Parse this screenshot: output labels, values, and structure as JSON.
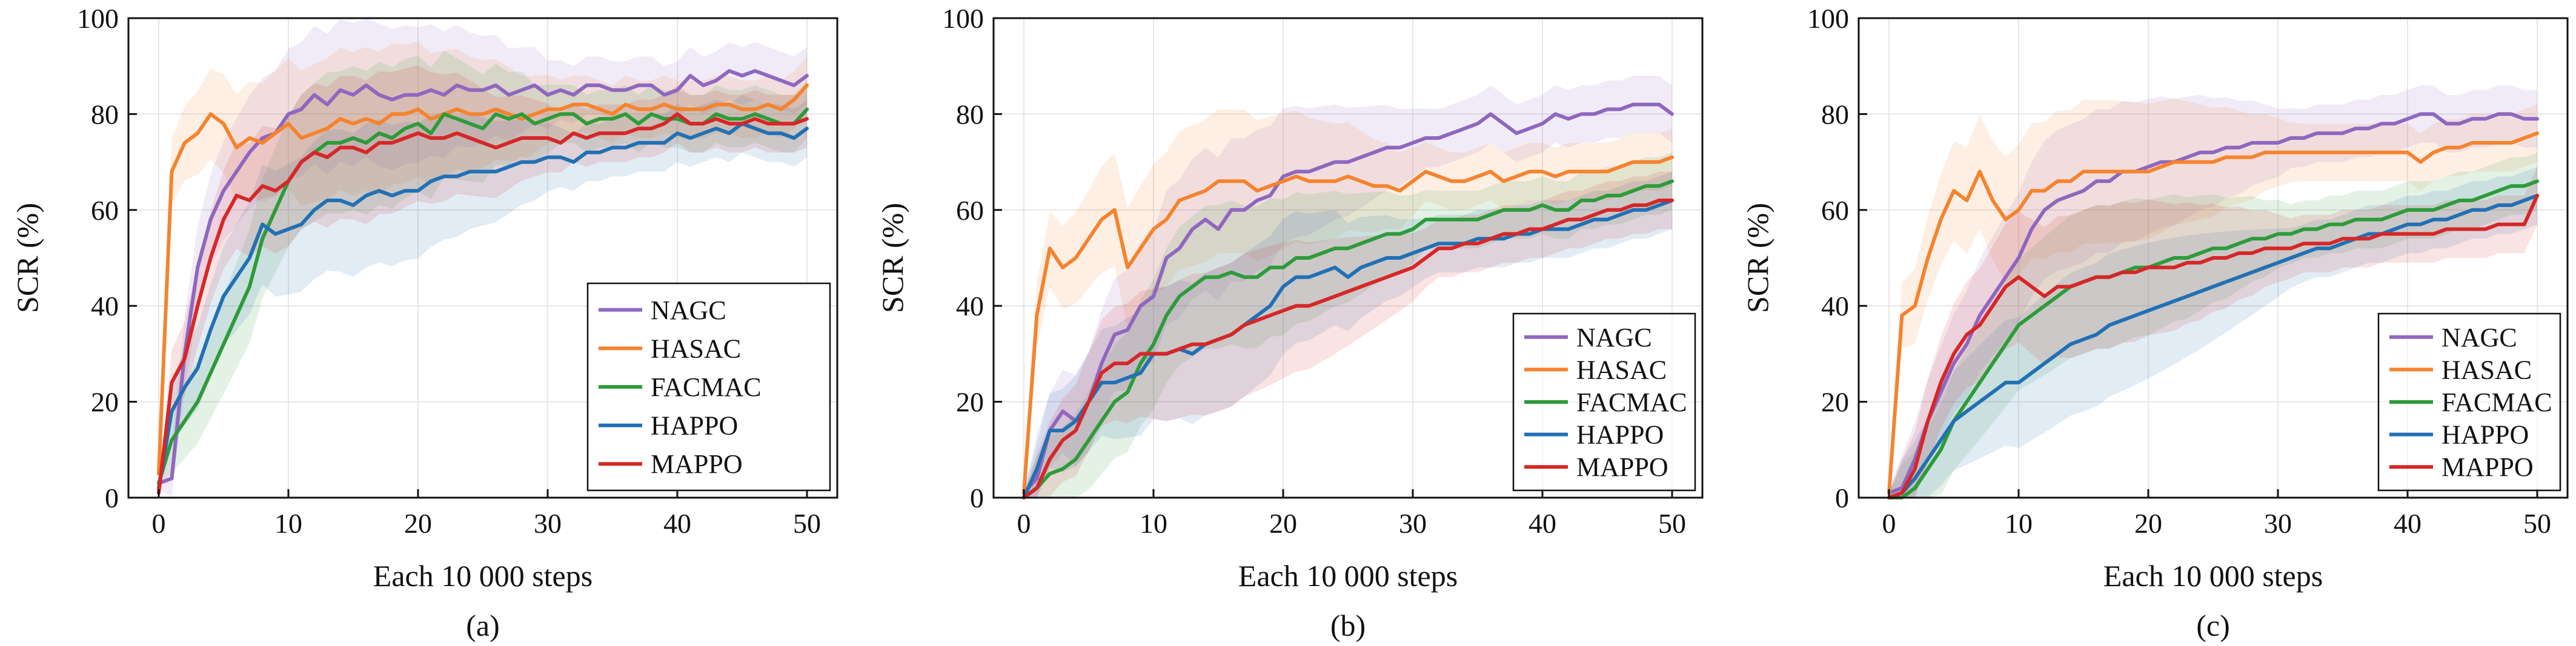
{
  "figure": {
    "panels": [
      {
        "caption": "(a)",
        "xlabel": "Each 10 000 steps",
        "ylabel": "SCR (%)"
      },
      {
        "caption": "(b)",
        "xlabel": "Each 10 000 steps",
        "ylabel": "SCR (%)"
      },
      {
        "caption": "(c)",
        "xlabel": "Each 10 000 steps",
        "ylabel": "SCR (%)"
      }
    ]
  },
  "chart_data": [
    {
      "type": "line",
      "caption": "(a)",
      "xlabel": "Each 10 000 steps",
      "ylabel": "SCR (%)",
      "xlim": [
        0,
        50
      ],
      "ylim": [
        0,
        100
      ],
      "xticks": [
        0,
        10,
        20,
        30,
        40,
        50
      ],
      "yticks": [
        0,
        20,
        40,
        60,
        80,
        100
      ],
      "grid": true,
      "legend_position": "bottom-right",
      "shaded_bands": true,
      "x": [
        0,
        1,
        2,
        3,
        4,
        5,
        6,
        7,
        8,
        9,
        10,
        11,
        12,
        13,
        14,
        15,
        16,
        17,
        18,
        19,
        20,
        21,
        22,
        23,
        24,
        25,
        26,
        27,
        28,
        29,
        30,
        31,
        32,
        33,
        34,
        35,
        36,
        37,
        38,
        39,
        40,
        41,
        42,
        43,
        44,
        45,
        46,
        47,
        48,
        49,
        50
      ],
      "series": [
        {
          "name": "NAGC",
          "color": "#8f67bf",
          "values": [
            3,
            4,
            30,
            48,
            58,
            64,
            68,
            72,
            75,
            76,
            80,
            81,
            84,
            82,
            85,
            84,
            86,
            84,
            83,
            84,
            84,
            85,
            84,
            86,
            85,
            85,
            86,
            84,
            85,
            86,
            84,
            85,
            84,
            86,
            86,
            85,
            85,
            86,
            86,
            84,
            85,
            88,
            86,
            87,
            89,
            88,
            89,
            88,
            87,
            86,
            88
          ]
        },
        {
          "name": "HASAC",
          "color": "#f5832e",
          "values": [
            5,
            68,
            74,
            76,
            80,
            78,
            73,
            75,
            74,
            76,
            78,
            75,
            76,
            77,
            79,
            78,
            79,
            78,
            80,
            80,
            81,
            79,
            80,
            81,
            80,
            80,
            81,
            80,
            79,
            80,
            81,
            81,
            82,
            82,
            81,
            80,
            82,
            81,
            81,
            82,
            81,
            81,
            81,
            82,
            82,
            81,
            81,
            82,
            81,
            83,
            86
          ]
        },
        {
          "name": "FACMAC",
          "color": "#2e9b3a",
          "values": [
            3,
            12,
            16,
            20,
            26,
            32,
            38,
            44,
            54,
            60,
            66,
            70,
            72,
            74,
            74,
            75,
            74,
            76,
            75,
            77,
            78,
            76,
            80,
            79,
            78,
            77,
            80,
            79,
            80,
            78,
            79,
            80,
            80,
            78,
            79,
            79,
            80,
            78,
            80,
            79,
            79,
            78,
            78,
            80,
            79,
            79,
            80,
            79,
            78,
            78,
            81
          ]
        },
        {
          "name": "HAPPO",
          "color": "#2270b5",
          "values": [
            2,
            18,
            23,
            27,
            35,
            42,
            46,
            50,
            57,
            55,
            56,
            57,
            60,
            62,
            62,
            61,
            63,
            64,
            63,
            64,
            64,
            66,
            67,
            67,
            68,
            68,
            68,
            69,
            70,
            70,
            71,
            71,
            70,
            72,
            72,
            73,
            73,
            74,
            74,
            74,
            76,
            75,
            76,
            77,
            76,
            78,
            77,
            76,
            76,
            75,
            77
          ]
        },
        {
          "name": "MAPPO",
          "color": "#d62728",
          "values": [
            1,
            24,
            29,
            40,
            50,
            58,
            63,
            62,
            65,
            64,
            66,
            70,
            72,
            71,
            73,
            73,
            72,
            74,
            74,
            75,
            76,
            75,
            75,
            76,
            75,
            74,
            73,
            74,
            75,
            75,
            75,
            74,
            76,
            75,
            76,
            76,
            76,
            77,
            77,
            78,
            80,
            78,
            78,
            79,
            78,
            78,
            79,
            78,
            78,
            78,
            79
          ]
        }
      ]
    },
    {
      "type": "line",
      "caption": "(b)",
      "xlabel": "Each 10 000 steps",
      "ylabel": "SCR (%)",
      "xlim": [
        0,
        50
      ],
      "ylim": [
        0,
        100
      ],
      "xticks": [
        0,
        10,
        20,
        30,
        40,
        50
      ],
      "yticks": [
        0,
        20,
        40,
        60,
        80,
        100
      ],
      "grid": true,
      "legend_position": "bottom-right",
      "shaded_bands": true,
      "x": [
        0,
        1,
        2,
        3,
        4,
        5,
        6,
        7,
        8,
        9,
        10,
        11,
        12,
        13,
        14,
        15,
        16,
        17,
        18,
        19,
        20,
        21,
        22,
        23,
        24,
        25,
        26,
        27,
        28,
        29,
        30,
        31,
        32,
        33,
        34,
        35,
        36,
        37,
        38,
        39,
        40,
        41,
        42,
        43,
        44,
        45,
        46,
        47,
        48,
        49,
        50
      ],
      "series": [
        {
          "name": "NAGC",
          "color": "#8f67bf",
          "values": [
            1,
            4,
            14,
            18,
            16,
            20,
            28,
            34,
            35,
            40,
            42,
            50,
            52,
            56,
            58,
            56,
            60,
            60,
            62,
            63,
            67,
            68,
            68,
            69,
            70,
            70,
            71,
            72,
            73,
            73,
            74,
            75,
            75,
            76,
            77,
            78,
            80,
            78,
            76,
            77,
            78,
            80,
            79,
            80,
            80,
            81,
            81,
            82,
            82,
            82,
            80
          ]
        },
        {
          "name": "HASAC",
          "color": "#f5832e",
          "values": [
            1,
            38,
            52,
            48,
            50,
            54,
            58,
            60,
            48,
            52,
            56,
            58,
            62,
            63,
            64,
            66,
            66,
            66,
            64,
            65,
            66,
            67,
            66,
            66,
            66,
            67,
            66,
            65,
            65,
            64,
            66,
            68,
            67,
            66,
            66,
            67,
            68,
            66,
            67,
            68,
            68,
            67,
            68,
            68,
            68,
            68,
            69,
            70,
            70,
            70,
            71
          ]
        },
        {
          "name": "FACMAC",
          "color": "#2e9b3a",
          "values": [
            0,
            2,
            5,
            6,
            8,
            12,
            16,
            20,
            22,
            28,
            32,
            38,
            42,
            44,
            46,
            46,
            47,
            46,
            46,
            48,
            48,
            50,
            50,
            51,
            52,
            52,
            53,
            54,
            55,
            55,
            56,
            58,
            58,
            58,
            58,
            58,
            59,
            60,
            60,
            60,
            61,
            60,
            60,
            62,
            62,
            63,
            63,
            64,
            65,
            65,
            66
          ]
        },
        {
          "name": "HAPPO",
          "color": "#2270b5",
          "values": [
            0,
            6,
            14,
            14,
            16,
            20,
            24,
            24,
            25,
            26,
            30,
            30,
            31,
            30,
            32,
            33,
            34,
            36,
            38,
            40,
            44,
            46,
            46,
            47,
            48,
            46,
            48,
            49,
            50,
            50,
            51,
            52,
            53,
            53,
            53,
            54,
            54,
            54,
            55,
            55,
            56,
            56,
            56,
            57,
            58,
            58,
            59,
            60,
            60,
            61,
            62
          ]
        },
        {
          "name": "MAPPO",
          "color": "#d62728",
          "values": [
            0,
            2,
            8,
            12,
            14,
            20,
            26,
            28,
            28,
            30,
            30,
            30,
            31,
            32,
            32,
            33,
            34,
            36,
            37,
            38,
            39,
            40,
            40,
            41,
            42,
            43,
            44,
            45,
            46,
            47,
            48,
            50,
            52,
            52,
            53,
            53,
            54,
            55,
            55,
            56,
            56,
            57,
            58,
            58,
            59,
            60,
            60,
            61,
            61,
            62,
            62
          ]
        }
      ]
    },
    {
      "type": "line",
      "caption": "(c)",
      "xlabel": "Each 10 000 steps",
      "ylabel": "SCR (%)",
      "xlim": [
        0,
        50
      ],
      "ylim": [
        0,
        100
      ],
      "xticks": [
        0,
        10,
        20,
        30,
        40,
        50
      ],
      "yticks": [
        0,
        20,
        40,
        60,
        80,
        100
      ],
      "grid": true,
      "legend_position": "bottom-right",
      "shaded_bands": true,
      "x": [
        0,
        1,
        2,
        3,
        4,
        5,
        6,
        7,
        8,
        9,
        10,
        11,
        12,
        13,
        14,
        15,
        16,
        17,
        18,
        19,
        20,
        21,
        22,
        23,
        24,
        25,
        26,
        27,
        28,
        29,
        30,
        31,
        32,
        33,
        34,
        35,
        36,
        37,
        38,
        39,
        40,
        41,
        42,
        43,
        44,
        45,
        46,
        47,
        48,
        49,
        50
      ],
      "series": [
        {
          "name": "NAGC",
          "color": "#8f67bf",
          "values": [
            1,
            2,
            8,
            16,
            22,
            28,
            32,
            38,
            42,
            46,
            50,
            56,
            60,
            62,
            63,
            64,
            66,
            66,
            68,
            68,
            69,
            70,
            70,
            71,
            72,
            72,
            73,
            73,
            74,
            74,
            74,
            75,
            75,
            76,
            76,
            76,
            77,
            77,
            78,
            78,
            79,
            80,
            80,
            78,
            78,
            79,
            79,
            80,
            80,
            79,
            79
          ]
        },
        {
          "name": "HASAC",
          "color": "#f5832e",
          "values": [
            1,
            38,
            40,
            50,
            58,
            64,
            62,
            68,
            62,
            58,
            60,
            64,
            64,
            66,
            66,
            68,
            68,
            68,
            68,
            68,
            68,
            69,
            70,
            70,
            70,
            70,
            71,
            71,
            71,
            72,
            72,
            72,
            72,
            72,
            72,
            72,
            72,
            72,
            72,
            72,
            72,
            70,
            72,
            73,
            73,
            74,
            74,
            74,
            74,
            75,
            76
          ]
        },
        {
          "name": "FACMAC",
          "color": "#2e9b3a",
          "values": [
            0,
            0,
            2,
            6,
            10,
            16,
            20,
            24,
            28,
            32,
            36,
            38,
            40,
            42,
            44,
            45,
            46,
            46,
            47,
            48,
            48,
            49,
            50,
            50,
            51,
            52,
            52,
            53,
            54,
            54,
            55,
            55,
            56,
            56,
            57,
            57,
            58,
            58,
            58,
            59,
            60,
            60,
            60,
            61,
            62,
            62,
            63,
            64,
            65,
            65,
            66
          ]
        },
        {
          "name": "HAPPO",
          "color": "#2270b5",
          "values": [
            0,
            1,
            4,
            8,
            12,
            16,
            18,
            20,
            22,
            24,
            24,
            26,
            28,
            30,
            32,
            33,
            34,
            36,
            37,
            38,
            39,
            40,
            41,
            42,
            43,
            44,
            45,
            46,
            47,
            48,
            49,
            50,
            51,
            52,
            52,
            53,
            54,
            55,
            55,
            56,
            57,
            57,
            58,
            58,
            59,
            60,
            60,
            61,
            61,
            62,
            63
          ]
        },
        {
          "name": "MAPPO",
          "color": "#d62728",
          "values": [
            0,
            1,
            6,
            16,
            24,
            30,
            34,
            36,
            40,
            44,
            46,
            44,
            42,
            44,
            44,
            45,
            46,
            46,
            47,
            47,
            48,
            48,
            48,
            49,
            49,
            50,
            50,
            51,
            51,
            52,
            52,
            52,
            53,
            53,
            53,
            54,
            54,
            54,
            55,
            55,
            55,
            55,
            55,
            56,
            56,
            56,
            56,
            57,
            57,
            57,
            63
          ]
        }
      ]
    }
  ]
}
